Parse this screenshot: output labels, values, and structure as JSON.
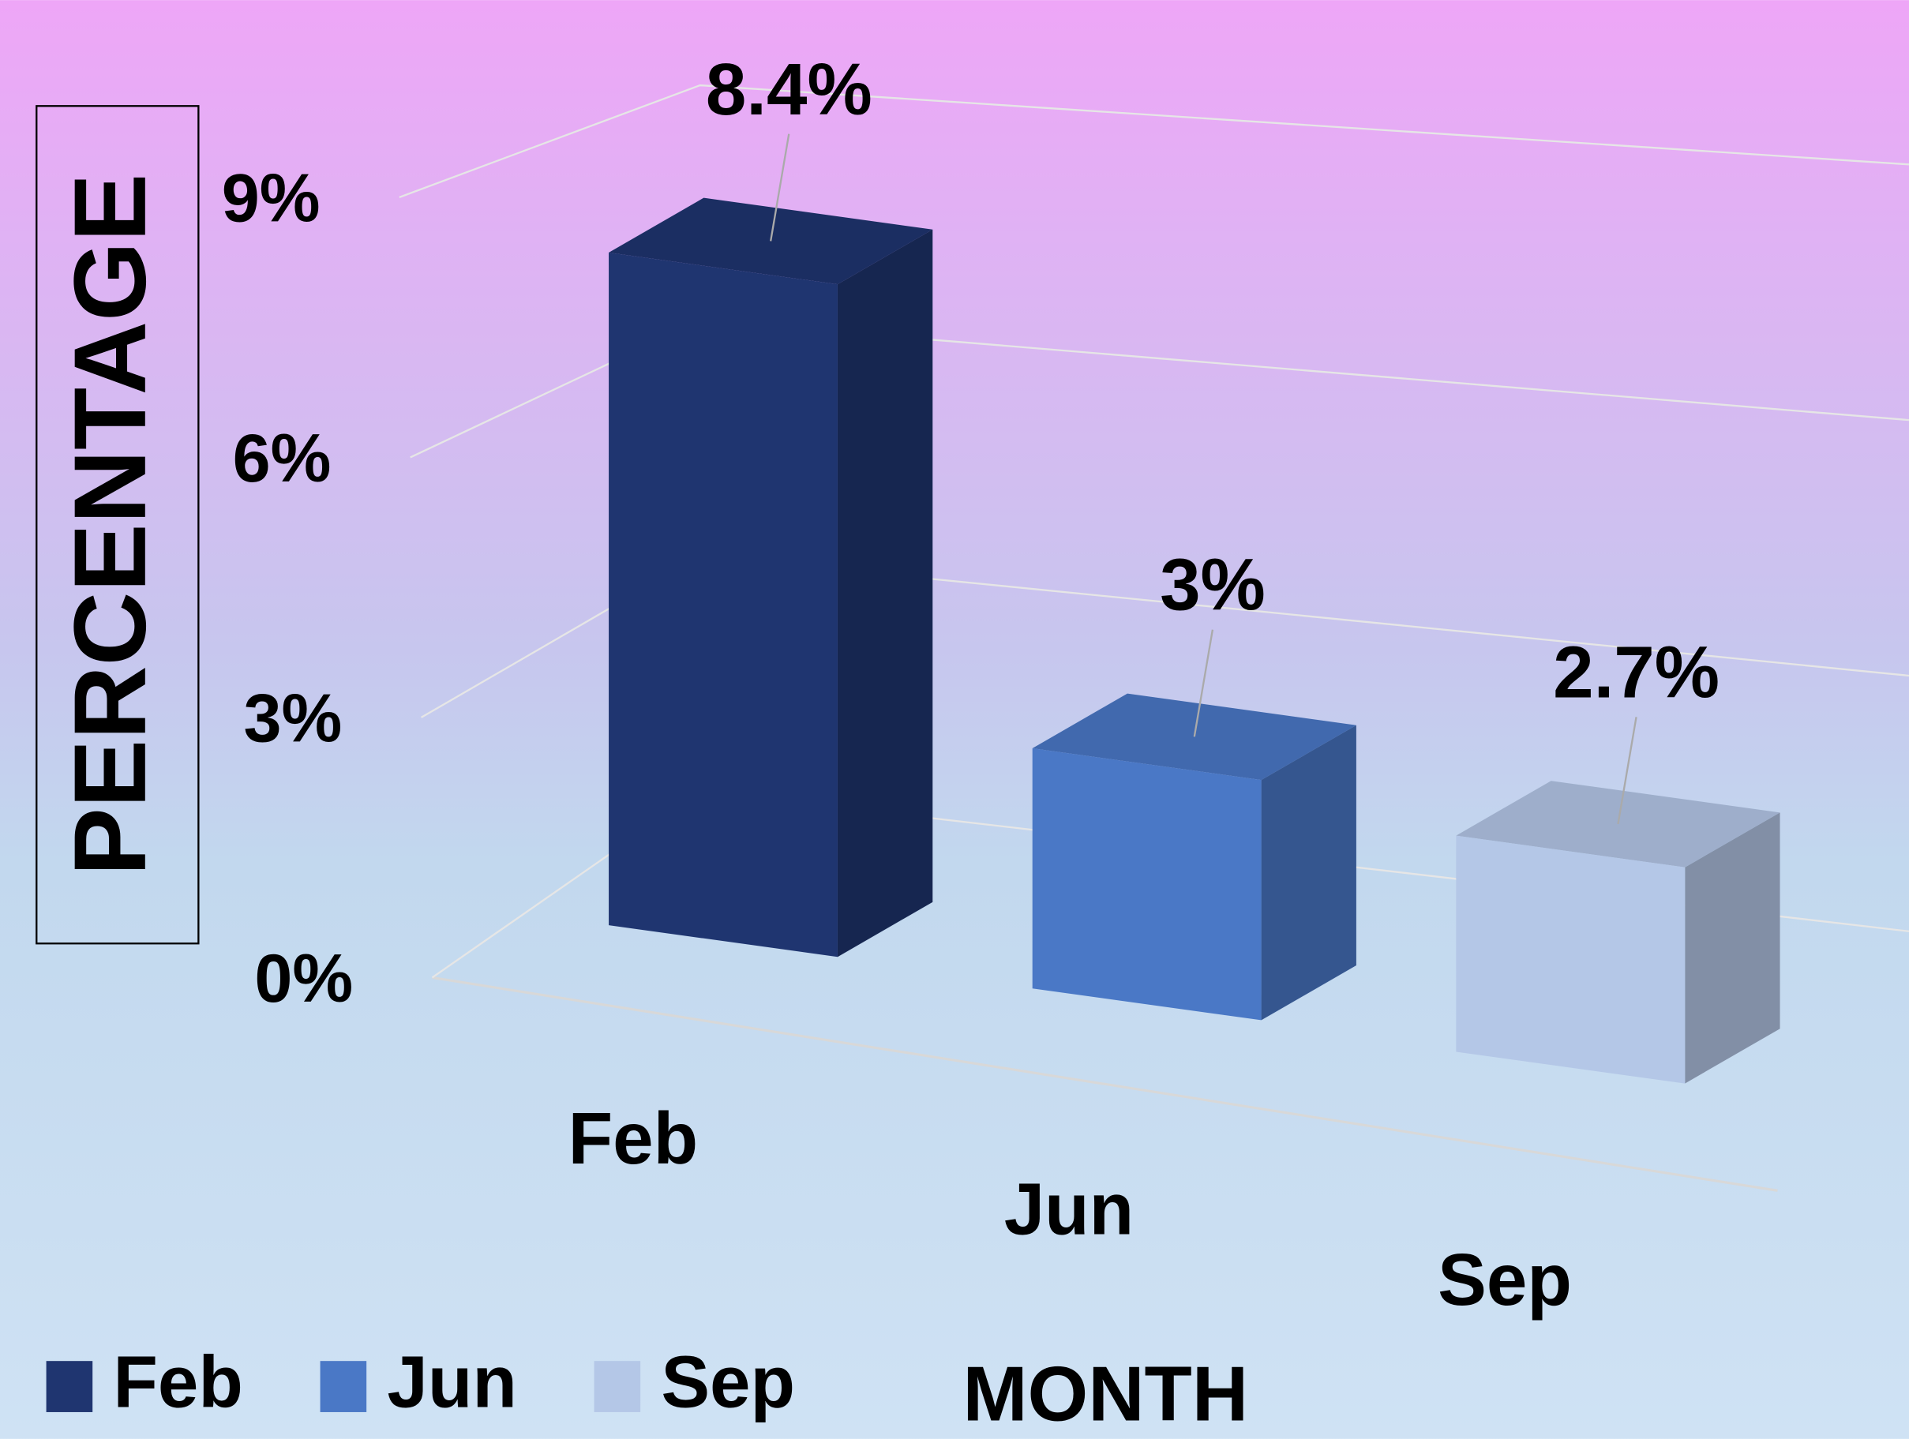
{
  "chart_data": {
    "type": "bar3d",
    "categories": [
      "Feb",
      "Jun",
      "Sep"
    ],
    "values": [
      8.4,
      3,
      2.7
    ],
    "value_labels": [
      "8.4%",
      "3%",
      "2.7%"
    ],
    "colors": [
      "#1f3570",
      "#4a78c6",
      "#b4c7e7"
    ],
    "ylim": [
      0,
      9
    ],
    "yticks": [
      {
        "value": 0,
        "label": "0%"
      },
      {
        "value": 3,
        "label": "3%"
      },
      {
        "value": 6,
        "label": "6%"
      },
      {
        "value": 9,
        "label": "9%"
      }
    ],
    "y_label": "PERCENTAGE",
    "x_label": "MONTH",
    "grid": true,
    "legend": "bottom-left"
  }
}
